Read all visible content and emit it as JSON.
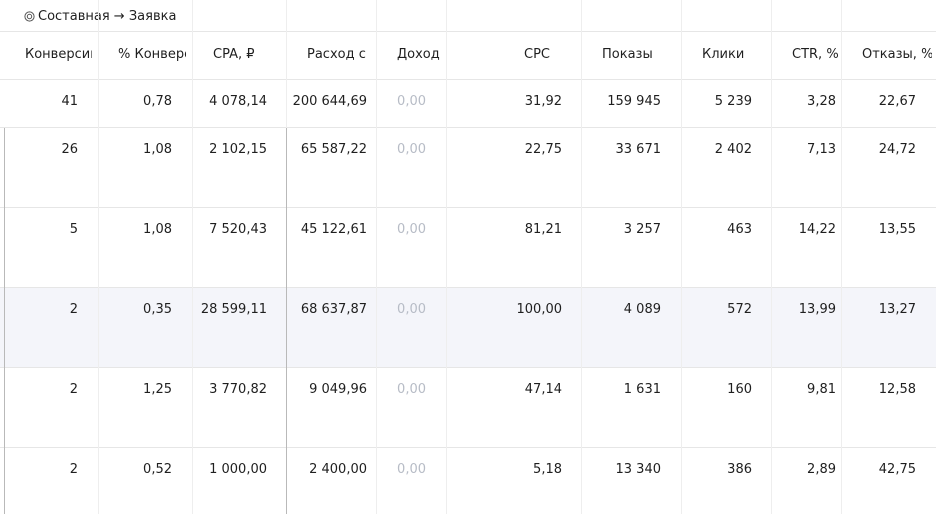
{
  "goal": {
    "icon": "target-icon",
    "label": "Составная → Заявка"
  },
  "columns": [
    {
      "key": "conversions",
      "label": "Конверсии"
    },
    {
      "key": "conv_rate",
      "label": "% Конверсий"
    },
    {
      "key": "cpa",
      "label": "CPA, ₽"
    },
    {
      "key": "spend",
      "label": "Расход с НДС"
    },
    {
      "key": "income",
      "label": "Доход"
    },
    {
      "key": "cpc",
      "label": "CPC"
    },
    {
      "key": "impressions",
      "label": "Показы"
    },
    {
      "key": "clicks",
      "label": "Клики"
    },
    {
      "key": "ctr",
      "label": "CTR, %"
    },
    {
      "key": "bounces",
      "label": "Отказы, %"
    }
  ],
  "rows": [
    {
      "conversions": "41",
      "conv_rate": "0,78",
      "cpa": "4 078,14",
      "spend": "200 644,69",
      "income": "0,00",
      "cpc": "31,92",
      "impressions": "159 945",
      "clicks": "5 239",
      "ctr": "3,28",
      "bounces": "22,67"
    },
    {
      "conversions": "26",
      "conv_rate": "1,08",
      "cpa": "2 102,15",
      "spend": "65 587,22",
      "income": "0,00",
      "cpc": "22,75",
      "impressions": "33 671",
      "clicks": "2 402",
      "ctr": "7,13",
      "bounces": "24,72"
    },
    {
      "conversions": "5",
      "conv_rate": "1,08",
      "cpa": "7 520,43",
      "spend": "45 122,61",
      "income": "0,00",
      "cpc": "81,21",
      "impressions": "3 257",
      "clicks": "463",
      "ctr": "14,22",
      "bounces": "13,55"
    },
    {
      "conversions": "2",
      "conv_rate": "0,35",
      "cpa": "28 599,11",
      "spend": "68 637,87",
      "income": "0,00",
      "cpc": "100,00",
      "impressions": "4 089",
      "clicks": "572",
      "ctr": "13,99",
      "bounces": "13,27"
    },
    {
      "conversions": "2",
      "conv_rate": "1,25",
      "cpa": "3 770,82",
      "spend": "9 049,96",
      "income": "0,00",
      "cpc": "47,14",
      "impressions": "1 631",
      "clicks": "160",
      "ctr": "9,81",
      "bounces": "12,58"
    },
    {
      "conversions": "2",
      "conv_rate": "0,52",
      "cpa": "1 000,00",
      "spend": "2 400,00",
      "income": "0,00",
      "cpc": "5,18",
      "impressions": "13 340",
      "clicks": "386",
      "ctr": "2,89",
      "bounces": "42,75"
    }
  ],
  "hovered_row": 3,
  "colors": {
    "muted_value": "#b7bcc6",
    "hover_row": "#f4f5fa",
    "grid": "#e6e6e6"
  }
}
